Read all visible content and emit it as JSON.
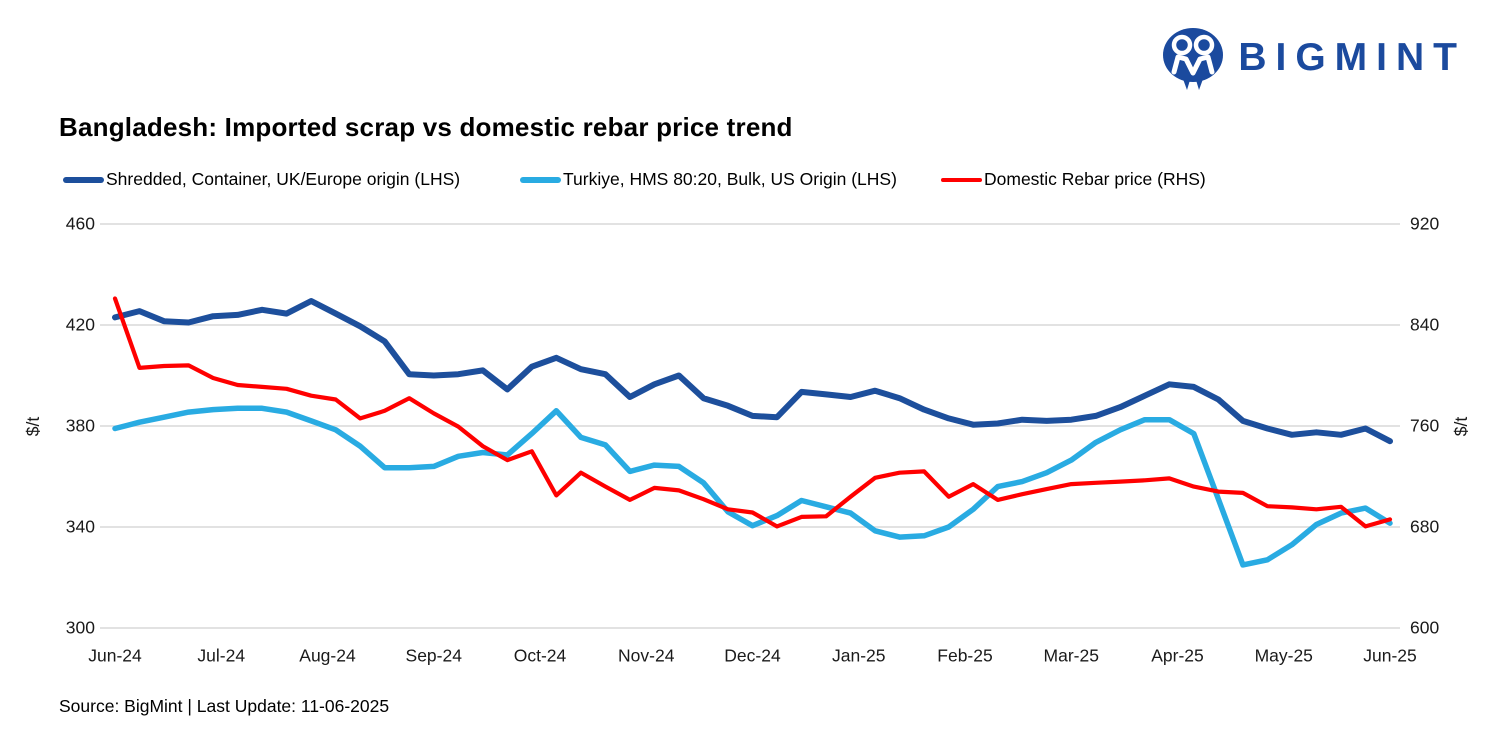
{
  "logo": {
    "text": "BIGMINT"
  },
  "title": "Bangladesh: Imported scrap vs domestic rebar price trend",
  "footer": "Source: BigMint | Last Update: 11-06-2025",
  "chart_data": {
    "type": "line",
    "title": "Bangladesh: Imported scrap vs domestic rebar price trend",
    "legend_position": "top",
    "grid": "horizontal-only",
    "grid_color": "#d9d9d9",
    "x_axis": {
      "categories": [
        "Jun-24",
        "Jul-24",
        "Aug-24",
        "Sep-24",
        "Oct-24",
        "Nov-24",
        "Dec-24",
        "Jan-25",
        "Feb-25",
        "Mar-25",
        "Apr-25",
        "May-25",
        "Jun-25"
      ],
      "note": "weekly data points spanning Jun-24 to Jun-25"
    },
    "y_axis_left": {
      "label": "$/t",
      "range": [
        300,
        460
      ],
      "ticks": [
        460,
        420,
        380,
        340,
        300
      ]
    },
    "y_axis_right": {
      "label": "$/t",
      "range": [
        600,
        920
      ],
      "ticks": [
        920,
        840,
        760,
        680,
        600
      ]
    },
    "series": [
      {
        "name": "Shredded, Container, UK/Europe origin (LHS)",
        "axis": "left",
        "color": "#1d4f9c",
        "values": [
          423,
          425.5,
          421.5,
          421,
          423.5,
          424,
          426,
          424.5,
          429.5,
          424.5,
          419.5,
          413.5,
          400.5,
          400,
          400.5,
          402,
          394.5,
          403.5,
          407,
          402.5,
          400.5,
          391.5,
          396.5,
          400,
          391,
          388,
          384,
          383.5,
          393.5,
          392.5,
          391.5,
          394,
          391,
          386.5,
          383,
          380.5,
          381,
          382.5,
          382,
          382.5,
          384,
          387.5,
          392,
          396.5,
          395.5,
          390.5,
          382,
          379,
          376.5,
          377.5,
          376.5,
          379,
          374
        ]
      },
      {
        "name": "Turkiye, HMS 80:20, Bulk, US Origin (LHS)",
        "axis": "left",
        "color": "#29abe2",
        "values": [
          379,
          381.5,
          383.5,
          385.5,
          386.5,
          387,
          387,
          385.5,
          382,
          378.5,
          372,
          363.5,
          363.5,
          364,
          368,
          369.5,
          368.5,
          377,
          386,
          375.5,
          372.5,
          362,
          364.5,
          364,
          357.5,
          346,
          340.5,
          344.5,
          350.5,
          348,
          345.5,
          338.5,
          336,
          336.5,
          340,
          347,
          356,
          358,
          361.5,
          366.5,
          373.5,
          378.5,
          382.5,
          382.5,
          377,
          351,
          325,
          327,
          333,
          341,
          345.5,
          347.5,
          341.5
        ]
      },
      {
        "name": "Domestic Rebar price (RHS)",
        "axis": "right",
        "color": "#ff0000",
        "values": [
          861,
          806,
          807.5,
          808,
          798,
          792.5,
          791,
          789.5,
          784,
          781,
          766,
          772,
          782,
          770,
          759.5,
          744,
          733,
          740,
          705,
          723,
          712,
          701.5,
          711,
          709,
          702,
          694,
          691.5,
          680.5,
          688,
          688.5,
          704,
          719,
          723,
          724,
          704,
          714,
          701.5,
          706,
          710,
          714,
          715,
          716,
          717,
          718.5,
          712,
          708,
          707,
          696.5,
          695.5,
          694,
          696,
          680.5,
          686
        ]
      }
    ]
  }
}
